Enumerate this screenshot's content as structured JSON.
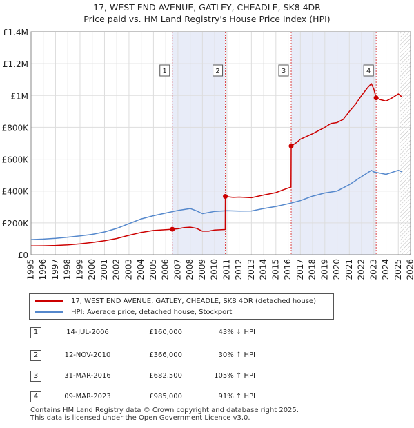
{
  "title_line1": "17, WEST END AVENUE, GATLEY, CHEADLE, SK8 4DR",
  "title_line2": "Price paid vs. HM Land Registry's House Price Index (HPI)",
  "chart_data": {
    "type": "line",
    "title": "17, WEST END AVENUE, GATLEY, CHEADLE, SK8 4DR — Price paid vs. HM Land Registry's House Price Index (HPI)",
    "xlabel": "",
    "ylabel": "",
    "xlim": [
      1995,
      2026
    ],
    "ylim": [
      0,
      1400000
    ],
    "x_ticks": [
      1995,
      1996,
      1997,
      1998,
      1999,
      2000,
      2001,
      2002,
      2003,
      2004,
      2005,
      2006,
      2007,
      2008,
      2009,
      2010,
      2011,
      2012,
      2013,
      2014,
      2015,
      2016,
      2017,
      2018,
      2019,
      2020,
      2021,
      2022,
      2023,
      2024,
      2025,
      2026
    ],
    "y_ticks": [
      {
        "value": 0,
        "label": "£0"
      },
      {
        "value": 200000,
        "label": "£200K"
      },
      {
        "value": 400000,
        "label": "£400K"
      },
      {
        "value": 600000,
        "label": "£600K"
      },
      {
        "value": 800000,
        "label": "£800K"
      },
      {
        "value": 1000000,
        "label": "£1M"
      },
      {
        "value": 1200000,
        "label": "£1.2M"
      },
      {
        "value": 1400000,
        "label": "£1.4M"
      }
    ],
    "shaded_periods": [
      {
        "from": 2006.54,
        "to": 2010.87,
        "color": "#e8ecf8"
      },
      {
        "from": 2016.25,
        "to": 2023.19,
        "color": "#e8ecf8"
      }
    ],
    "forecast_from": 2025.1,
    "series": [
      {
        "name": "17, WEST END AVENUE, GATLEY, CHEADLE, SK8 4DR (detached house)",
        "color": "#cc0000",
        "points": [
          [
            1995.0,
            55000
          ],
          [
            1996.0,
            56000
          ],
          [
            1997.0,
            58000
          ],
          [
            1998.0,
            62000
          ],
          [
            1999.0,
            68000
          ],
          [
            2000.0,
            77000
          ],
          [
            2001.0,
            88000
          ],
          [
            2002.0,
            102000
          ],
          [
            2003.0,
            122000
          ],
          [
            2004.0,
            140000
          ],
          [
            2005.0,
            152000
          ],
          [
            2006.0,
            157000
          ],
          [
            2006.54,
            160000
          ],
          [
            2007.0,
            163000
          ],
          [
            2007.5,
            170000
          ],
          [
            2008.0,
            173000
          ],
          [
            2008.5,
            166000
          ],
          [
            2009.0,
            148000
          ],
          [
            2009.5,
            148000
          ],
          [
            2010.0,
            155000
          ],
          [
            2010.86,
            158000
          ],
          [
            2010.87,
            366000
          ],
          [
            2011.5,
            360000
          ],
          [
            2012.0,
            362000
          ],
          [
            2013.0,
            358000
          ],
          [
            2014.0,
            375000
          ],
          [
            2015.0,
            390000
          ],
          [
            2015.5,
            405000
          ],
          [
            2016.24,
            425000
          ],
          [
            2016.25,
            682500
          ],
          [
            2016.7,
            705000
          ],
          [
            2017.0,
            725000
          ],
          [
            2018.0,
            760000
          ],
          [
            2019.0,
            800000
          ],
          [
            2019.5,
            825000
          ],
          [
            2020.0,
            830000
          ],
          [
            2020.5,
            850000
          ],
          [
            2021.0,
            900000
          ],
          [
            2021.5,
            945000
          ],
          [
            2022.0,
            1000000
          ],
          [
            2022.5,
            1050000
          ],
          [
            2022.8,
            1075000
          ],
          [
            2023.0,
            1040000
          ],
          [
            2023.19,
            985000
          ],
          [
            2023.5,
            975000
          ],
          [
            2024.0,
            965000
          ],
          [
            2024.5,
            985000
          ],
          [
            2025.0,
            1010000
          ],
          [
            2025.3,
            990000
          ]
        ]
      },
      {
        "name": "HPI: Average price, detached house, Stockport",
        "color": "#5588cc",
        "points": [
          [
            1995.0,
            95000
          ],
          [
            1996.0,
            98000
          ],
          [
            1997.0,
            103000
          ],
          [
            1998.0,
            110000
          ],
          [
            1999.0,
            118000
          ],
          [
            2000.0,
            128000
          ],
          [
            2001.0,
            143000
          ],
          [
            2002.0,
            165000
          ],
          [
            2003.0,
            195000
          ],
          [
            2004.0,
            225000
          ],
          [
            2005.0,
            245000
          ],
          [
            2006.0,
            262000
          ],
          [
            2007.0,
            278000
          ],
          [
            2008.0,
            290000
          ],
          [
            2008.5,
            276000
          ],
          [
            2009.0,
            258000
          ],
          [
            2009.5,
            265000
          ],
          [
            2010.0,
            272000
          ],
          [
            2011.0,
            276000
          ],
          [
            2012.0,
            274000
          ],
          [
            2013.0,
            275000
          ],
          [
            2014.0,
            290000
          ],
          [
            2015.0,
            303000
          ],
          [
            2016.0,
            320000
          ],
          [
            2017.0,
            340000
          ],
          [
            2018.0,
            368000
          ],
          [
            2019.0,
            388000
          ],
          [
            2020.0,
            400000
          ],
          [
            2021.0,
            440000
          ],
          [
            2022.0,
            490000
          ],
          [
            2022.8,
            530000
          ],
          [
            2023.0,
            520000
          ],
          [
            2024.0,
            505000
          ],
          [
            2025.0,
            530000
          ],
          [
            2025.3,
            520000
          ]
        ]
      }
    ],
    "sale_markers": [
      {
        "label": "1",
        "x": 2006.54,
        "y": 160000
      },
      {
        "label": "2",
        "x": 2010.87,
        "y": 366000
      },
      {
        "label": "3",
        "x": 2016.25,
        "y": 682500
      },
      {
        "label": "4",
        "x": 2023.19,
        "y": 985000
      }
    ]
  },
  "legend": {
    "property": "17, WEST END AVENUE, GATLEY, CHEADLE, SK8 4DR (detached house)",
    "hpi": "HPI: Average price, detached house, Stockport"
  },
  "sales": [
    {
      "num": "1",
      "date": "14-JUL-2006",
      "price": "£160,000",
      "hpi": "43% ↓ HPI"
    },
    {
      "num": "2",
      "date": "12-NOV-2010",
      "price": "£366,000",
      "hpi": "30% ↑ HPI"
    },
    {
      "num": "3",
      "date": "31-MAR-2016",
      "price": "£682,500",
      "hpi": "105% ↑ HPI"
    },
    {
      "num": "4",
      "date": "09-MAR-2023",
      "price": "£985,000",
      "hpi": "91% ↑ HPI"
    }
  ],
  "footer": {
    "line1": "Contains HM Land Registry data © Crown copyright and database right 2025.",
    "line2": "This data is licensed under the Open Government Licence v3.0."
  },
  "colors": {
    "property": "#cc0000",
    "hpi": "#5588cc",
    "shade": "#e8ecf8",
    "grid": "#dddddd"
  }
}
